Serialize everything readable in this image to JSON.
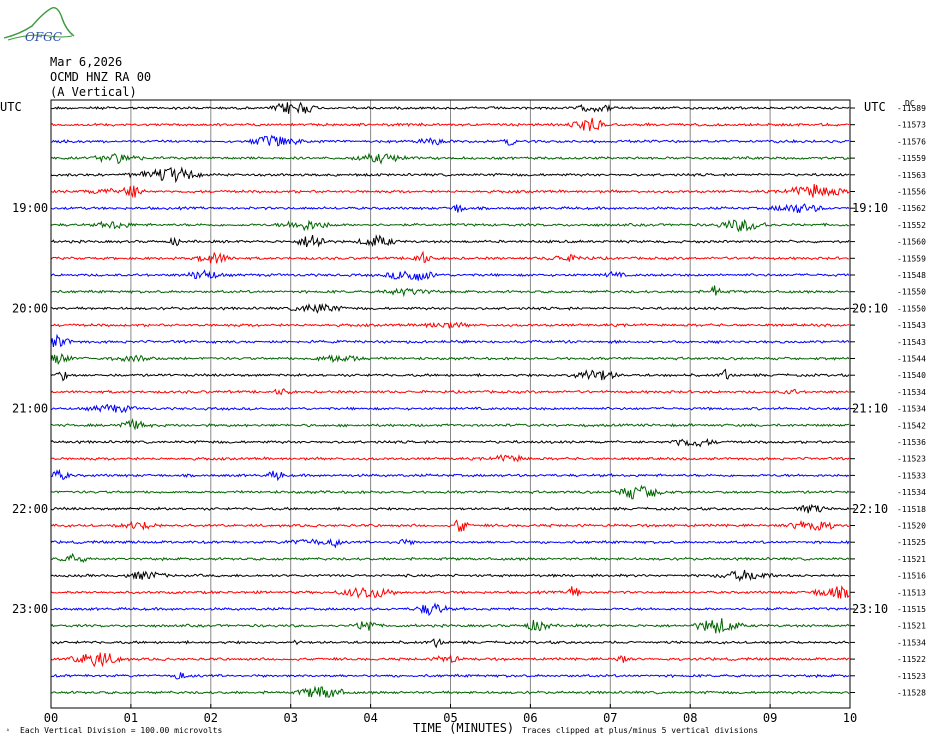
{
  "logo": {
    "text": "OFGC"
  },
  "header": {
    "date": "Mar 6,2026",
    "station": "OCMD HNZ RA 00",
    "component": "(A Vertical)"
  },
  "utc_left": "UTC",
  "utc_right": "UTC",
  "dc_label": "DC",
  "colors": {
    "cycle": [
      "#000000",
      "#ff0000",
      "#0000ff",
      "#006600"
    ],
    "grid": "#888888"
  },
  "footer": {
    "scale_note": "Each Vertical Division =  100.00 microvolts",
    "xlabel": "TIME (MINUTES)",
    "clip_note": "Traces clipped at plus/minus 5 vertical divisions"
  },
  "chart_data": {
    "type": "line",
    "title": "Mar 6,2026 OCMD HNZ RA 00 (A Vertical)",
    "xlabel": "TIME (MINUTES)",
    "xlim": [
      0,
      10
    ],
    "x_ticks": [
      "00",
      "01",
      "02",
      "03",
      "04",
      "05",
      "06",
      "07",
      "08",
      "09",
      "10"
    ],
    "traces_per_hour": 6,
    "minutes_per_trace": 10,
    "left_hour_labels": [
      "19:00",
      "20:00",
      "21:00",
      "22:00",
      "23:00"
    ],
    "right_hour_labels": [
      "19:10",
      "20:10",
      "21:10",
      "22:10",
      "23:10"
    ],
    "dc_offsets": [
      -11589,
      -11573,
      -11576,
      -11559,
      -11563,
      -11556,
      -11562,
      -11552,
      -11560,
      -11559,
      -11548,
      -11550,
      -11550,
      -11543,
      -11543,
      -11544,
      -11540,
      -11534,
      -11534,
      -11542,
      -11536,
      -11523,
      -11533,
      -11534,
      -11518,
      -11520,
      -11525,
      -11521,
      -11516,
      -11513,
      -11515,
      -11521,
      -11534,
      -11522,
      -11523,
      -11528
    ],
    "amplitude_units": "microvolts",
    "vertical_division_microvolts": 100.0,
    "clip_divisions": 5
  }
}
